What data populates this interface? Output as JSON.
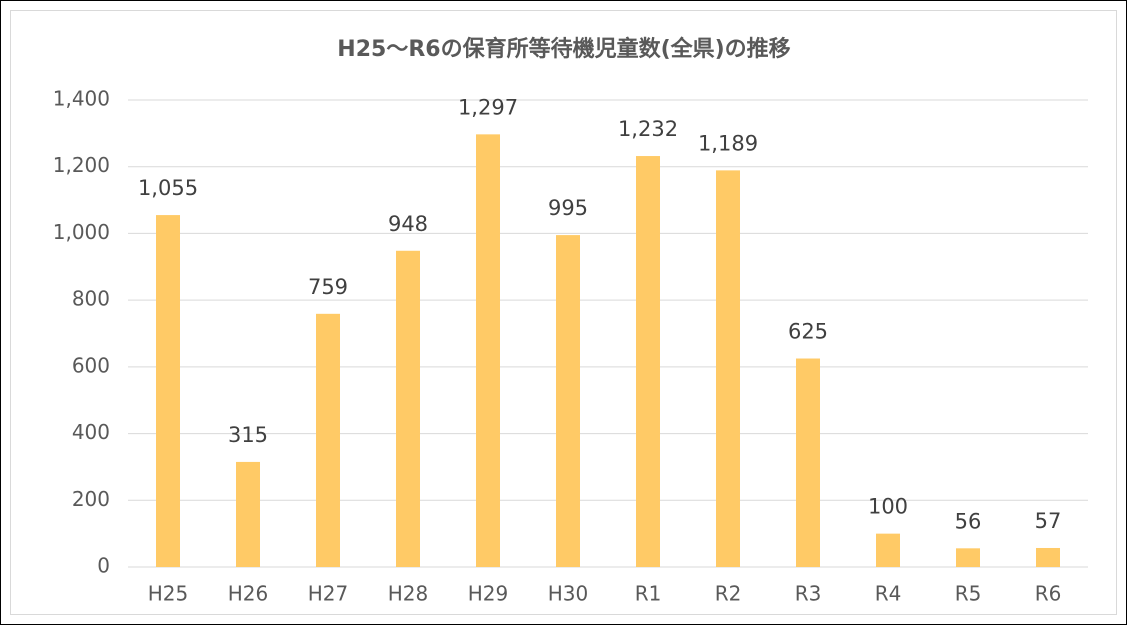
{
  "chart_data": {
    "type": "bar",
    "title": "H25～R6の保育所等待機児童数(全県)の推移",
    "categories": [
      "H25",
      "H26",
      "H27",
      "H28",
      "H29",
      "H30",
      "R1",
      "R2",
      "R3",
      "R4",
      "R5",
      "R6"
    ],
    "values": [
      1055,
      315,
      759,
      948,
      1297,
      995,
      1232,
      1189,
      625,
      100,
      56,
      57
    ],
    "value_labels": [
      "1,055",
      "315",
      "759",
      "948",
      "1,297",
      "995",
      "1,232",
      "1,189",
      "625",
      "100",
      "56",
      "57"
    ],
    "color": "#ffca66",
    "ylim": [
      0,
      1400
    ],
    "yticks": [
      0,
      200,
      400,
      600,
      800,
      {
        "value": 1000,
        "label": "1,000"
      },
      {
        "value": 1200,
        "label": "1,200"
      },
      {
        "value": 1400,
        "label": "1,400"
      }
    ],
    "grid": true
  }
}
